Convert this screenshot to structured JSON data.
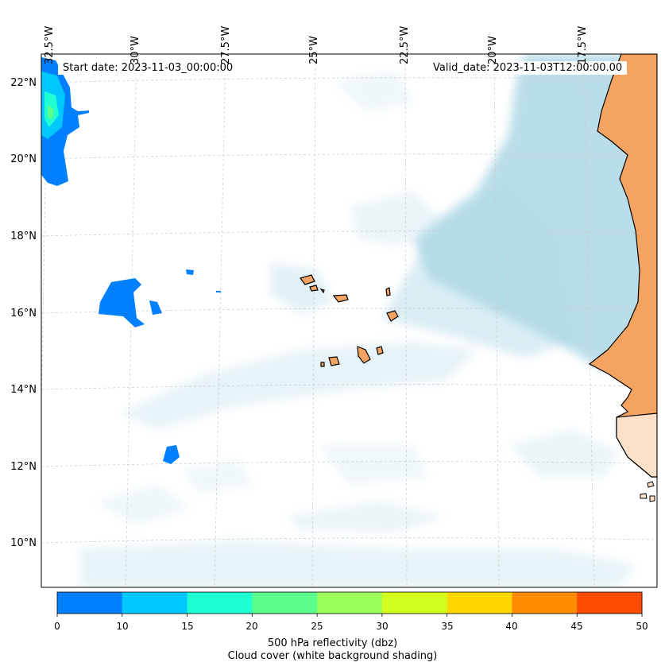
{
  "start_date": "Start date: 2023-11-03_00:00:00",
  "valid_date": "Valid_date: 2023-11-03T12:00:00.00",
  "lon_labels": [
    "32.5°W",
    "30°W",
    "27.5°W",
    "25°W",
    "22.5°W",
    "20°W",
    "17.5°W"
  ],
  "lat_labels": [
    "22°N",
    "20°N",
    "18°N",
    "16°N",
    "14°N",
    "12°N",
    "10°N"
  ],
  "colorbar": {
    "ticks": [
      "0",
      "10",
      "15",
      "20",
      "25",
      "30",
      "35",
      "40",
      "45",
      "50"
    ],
    "colors": [
      "#0080ff",
      "#00c8ff",
      "#1effd2",
      "#5aff8c",
      "#9bff5a",
      "#d2ff1e",
      "#ffd700",
      "#ff8c00",
      "#ff4b00"
    ],
    "label_line1": "500 hPa reflectivity (dbz)",
    "label_line2": "Cloud cover (white background shading)"
  },
  "colors": {
    "land": "#f4a460",
    "cloud": "#add8e6",
    "coast": "#000000"
  }
}
